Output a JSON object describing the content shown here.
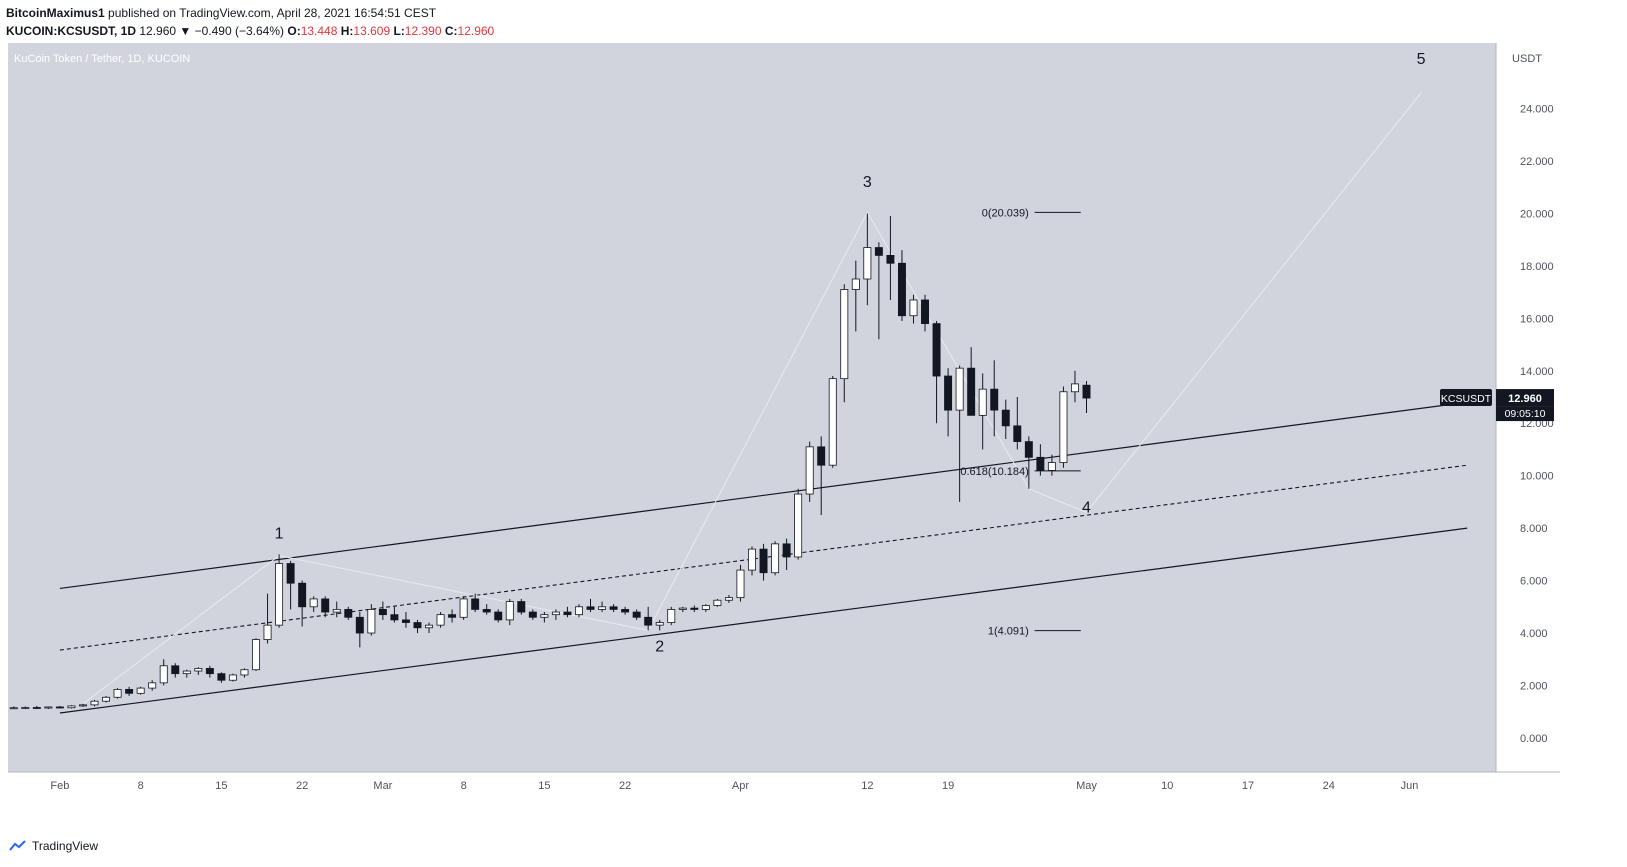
{
  "header": {
    "author": "BitcoinMaximus1",
    "published_text": "published on TradingView.com, April 28, 2021 16:54:51 CEST",
    "symbol_line": "KUCOIN:KCSUSDT, 1D",
    "last": "12.960",
    "change": "▼ −0.490 (−3.64%)",
    "o_label": "O:",
    "o_value": "13.448",
    "h_label": "H:",
    "h_value": "13.609",
    "l_label": "L:",
    "l_value": "12.390",
    "c_label": "C:",
    "c_value": "12.960"
  },
  "footer": {
    "brand": "TradingView"
  },
  "colors": {
    "plot_bg": "#d1d4dc",
    "up_candle": "#ffffff",
    "down_candle": "#131722",
    "red_text": "#e0383e",
    "price_tag_bg": "#131722"
  },
  "chart_data": {
    "type": "candlestick",
    "title": "KuCoin Token / Tether, 1D, KUCOIN",
    "currency_label": "USDT",
    "y_ticks": [
      "24.000",
      "22.000",
      "20.000",
      "18.000",
      "16.000",
      "14.000",
      "12.000",
      "10.000",
      "8.000",
      "6.000",
      "4.000",
      "2.000",
      "0.000"
    ],
    "ylim": [
      -1.3,
      26.5
    ],
    "x_tick_labels": [
      "Feb",
      "8",
      "15",
      "22",
      "Mar",
      "8",
      "15",
      "22",
      "Apr",
      "12",
      "19",
      "May",
      "10",
      "17",
      "24",
      "Jun"
    ],
    "x_tick_days": [
      0,
      7,
      14,
      21,
      28,
      35,
      42,
      49,
      59,
      70,
      77,
      89,
      96,
      103,
      110,
      117
    ],
    "xlim": [
      -4.5,
      124.5
    ],
    "candles": [
      [
        -4,
        1.13,
        1.2,
        1.1,
        1.15
      ],
      [
        -3,
        1.15,
        1.2,
        1.1,
        1.16
      ],
      [
        -2,
        1.16,
        1.22,
        1.12,
        1.14
      ],
      [
        -1,
        1.14,
        1.2,
        1.1,
        1.18
      ],
      [
        0,
        1.18,
        1.22,
        1.12,
        1.15
      ],
      [
        1,
        1.15,
        1.25,
        1.12,
        1.22
      ],
      [
        2,
        1.22,
        1.3,
        1.18,
        1.26
      ],
      [
        3,
        1.26,
        1.45,
        1.2,
        1.4
      ],
      [
        4,
        1.4,
        1.6,
        1.35,
        1.55
      ],
      [
        5,
        1.55,
        1.9,
        1.5,
        1.85
      ],
      [
        6,
        1.85,
        1.95,
        1.6,
        1.7
      ],
      [
        7,
        1.7,
        1.95,
        1.65,
        1.9
      ],
      [
        8,
        1.9,
        2.2,
        1.8,
        2.1
      ],
      [
        9,
        2.1,
        3.0,
        2.0,
        2.75
      ],
      [
        10,
        2.75,
        2.85,
        2.3,
        2.45
      ],
      [
        11,
        2.45,
        2.6,
        2.3,
        2.55
      ],
      [
        12,
        2.55,
        2.7,
        2.4,
        2.65
      ],
      [
        13,
        2.65,
        2.75,
        2.3,
        2.45
      ],
      [
        14,
        2.45,
        2.5,
        2.1,
        2.2
      ],
      [
        15,
        2.2,
        2.45,
        2.15,
        2.4
      ],
      [
        16,
        2.4,
        2.65,
        2.3,
        2.6
      ],
      [
        17,
        2.6,
        3.8,
        2.55,
        3.75
      ],
      [
        18,
        3.75,
        5.5,
        3.6,
        4.3
      ],
      [
        19,
        4.3,
        7.0,
        4.2,
        6.65
      ],
      [
        20,
        6.65,
        6.75,
        4.9,
        5.9
      ],
      [
        21,
        5.9,
        6.0,
        4.25,
        5.0
      ],
      [
        22,
        5.0,
        5.4,
        4.8,
        5.3
      ],
      [
        23,
        5.3,
        5.4,
        4.6,
        4.8
      ],
      [
        24,
        4.8,
        5.2,
        4.6,
        4.9
      ],
      [
        25,
        4.9,
        5.0,
        4.5,
        4.6
      ],
      [
        26,
        4.6,
        4.8,
        3.45,
        4.0
      ],
      [
        27,
        4.0,
        5.1,
        3.9,
        4.9
      ],
      [
        28,
        4.9,
        5.2,
        4.5,
        4.7
      ],
      [
        29,
        4.7,
        5.0,
        4.4,
        4.5
      ],
      [
        30,
        4.5,
        4.8,
        4.2,
        4.4
      ],
      [
        31,
        4.4,
        4.5,
        4.0,
        4.2
      ],
      [
        32,
        4.2,
        4.4,
        4.0,
        4.3
      ],
      [
        33,
        4.3,
        4.8,
        4.2,
        4.7
      ],
      [
        34,
        4.7,
        4.9,
        4.4,
        4.6
      ],
      [
        35,
        4.6,
        5.4,
        4.5,
        5.3
      ],
      [
        36,
        5.3,
        5.5,
        4.8,
        4.9
      ],
      [
        37,
        4.9,
        5.1,
        4.7,
        4.8
      ],
      [
        38,
        4.8,
        4.9,
        4.4,
        4.5
      ],
      [
        39,
        4.5,
        5.3,
        4.3,
        5.2
      ],
      [
        40,
        5.2,
        5.3,
        4.7,
        4.8
      ],
      [
        41,
        4.8,
        4.9,
        4.5,
        4.6
      ],
      [
        42,
        4.6,
        4.8,
        4.4,
        4.7
      ],
      [
        43,
        4.7,
        4.9,
        4.5,
        4.8
      ],
      [
        44,
        4.8,
        5.0,
        4.6,
        4.7
      ],
      [
        45,
        4.7,
        5.1,
        4.6,
        5.0
      ],
      [
        46,
        5.0,
        5.3,
        4.8,
        4.9
      ],
      [
        47,
        4.9,
        5.2,
        4.8,
        5.0
      ],
      [
        48,
        5.0,
        5.1,
        4.8,
        4.9
      ],
      [
        49,
        4.9,
        5.0,
        4.7,
        4.8
      ],
      [
        50,
        4.8,
        4.9,
        4.5,
        4.6
      ],
      [
        51,
        4.6,
        5.0,
        4.1,
        4.3
      ],
      [
        52,
        4.3,
        4.5,
        4.1,
        4.4
      ],
      [
        53,
        4.4,
        5.0,
        4.3,
        4.9
      ],
      [
        54,
        4.9,
        5.0,
        4.8,
        4.95
      ],
      [
        55,
        4.95,
        5.05,
        4.8,
        4.9
      ],
      [
        56,
        4.9,
        5.1,
        4.8,
        5.05
      ],
      [
        57,
        5.05,
        5.3,
        5.0,
        5.25
      ],
      [
        58,
        5.25,
        5.45,
        5.15,
        5.35
      ],
      [
        59,
        5.35,
        6.6,
        5.2,
        6.4
      ],
      [
        60,
        6.4,
        7.3,
        6.2,
        7.2
      ],
      [
        61,
        7.2,
        7.4,
        6.0,
        6.3
      ],
      [
        62,
        6.3,
        7.5,
        6.2,
        7.4
      ],
      [
        63,
        7.4,
        7.6,
        6.4,
        6.9
      ],
      [
        64,
        6.9,
        9.5,
        6.8,
        9.3
      ],
      [
        65,
        9.3,
        11.3,
        9.0,
        11.1
      ],
      [
        66,
        11.1,
        11.5,
        8.5,
        10.4
      ],
      [
        67,
        10.4,
        13.8,
        10.3,
        13.7
      ],
      [
        68,
        13.7,
        17.3,
        12.8,
        17.1
      ],
      [
        69,
        17.1,
        18.2,
        15.5,
        17.5
      ],
      [
        70,
        17.5,
        20.0,
        16.5,
        18.7
      ],
      [
        71,
        18.7,
        18.9,
        15.2,
        18.4
      ],
      [
        72,
        18.4,
        19.9,
        16.7,
        18.1
      ],
      [
        73,
        18.1,
        18.6,
        15.9,
        16.1
      ],
      [
        74,
        16.1,
        16.9,
        15.8,
        16.7
      ],
      [
        75,
        16.7,
        16.9,
        15.5,
        15.8
      ],
      [
        76,
        15.8,
        15.9,
        12.0,
        13.8
      ],
      [
        77,
        13.8,
        14.1,
        11.5,
        12.5
      ],
      [
        78,
        12.5,
        14.2,
        9.0,
        14.1
      ],
      [
        79,
        14.1,
        14.9,
        12.4,
        12.3
      ],
      [
        80,
        12.3,
        13.9,
        11.0,
        13.3
      ],
      [
        81,
        13.3,
        14.4,
        11.5,
        12.5
      ],
      [
        82,
        12.5,
        12.9,
        11.4,
        11.9
      ],
      [
        83,
        11.9,
        13.0,
        11.0,
        11.3
      ],
      [
        84,
        11.3,
        11.5,
        9.5,
        10.7
      ],
      [
        85,
        10.7,
        11.2,
        10.0,
        10.2
      ],
      [
        86,
        10.2,
        10.8,
        10.0,
        10.5
      ],
      [
        87,
        10.5,
        13.4,
        10.3,
        13.2
      ],
      [
        88,
        13.2,
        14.0,
        12.8,
        13.5
      ],
      [
        89,
        13.45,
        13.61,
        12.39,
        12.96
      ]
    ],
    "channel": {
      "upper": [
        [
          0,
          5.7
        ],
        [
          122,
          12.8
        ]
      ],
      "middle": [
        [
          0,
          3.35
        ],
        [
          122,
          10.4
        ]
      ],
      "lower": [
        [
          0,
          0.95
        ],
        [
          122,
          8.0
        ]
      ]
    },
    "wave_labels": [
      {
        "label": "1",
        "day": 19,
        "price": 7.6
      },
      {
        "label": "2",
        "day": 52,
        "price": 3.3
      },
      {
        "label": "3",
        "day": 70,
        "price": 21.0
      },
      {
        "label": "4",
        "day": 89,
        "price": 8.6
      },
      {
        "label": "5",
        "day": 118,
        "price": 25.7
      }
    ],
    "fib_levels": [
      {
        "label": "0(20.039)",
        "price": 20.039
      },
      {
        "label": "0.618(10.184)",
        "price": 10.184
      },
      {
        "label": "1(4.091)",
        "price": 4.091
      }
    ],
    "price_tag": {
      "symbol": "KCSUSDT",
      "price": "12.960",
      "countdown": "09:05:10",
      "value": 12.96
    }
  }
}
